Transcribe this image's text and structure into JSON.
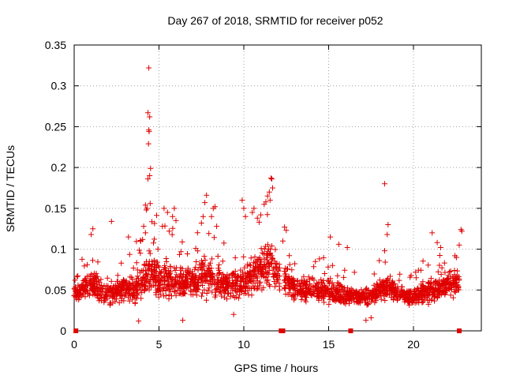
{
  "chart_data": {
    "type": "scatter",
    "title": "Day 267 of 2018, SRMTID for receiver p052",
    "xlabel": "GPS time / hours",
    "ylabel": "SRMTID / TECUs",
    "xlim": [
      0,
      24
    ],
    "ylim": [
      0,
      0.35
    ],
    "xticks": [
      0,
      5,
      10,
      15,
      20
    ],
    "xtick_labels": [
      "0",
      "5",
      "10",
      "15",
      "20"
    ],
    "yticks": [
      0,
      0.05,
      0.1,
      0.15,
      0.2,
      0.25,
      0.3,
      0.35
    ],
    "ytick_labels": [
      "0",
      "0.05",
      "0.1",
      "0.15",
      "0.2",
      "0.25",
      "0.3",
      "0.35"
    ],
    "grid": true,
    "marker": "+",
    "color": "#e00000",
    "generated_points_per_hour": 95,
    "gap_markers_x": [
      0.1,
      12.2,
      12.3,
      16.3,
      22.7
    ],
    "envelope": [
      {
        "x": 0.0,
        "base": 0.046,
        "spread": 0.012
      },
      {
        "x": 0.5,
        "base": 0.05,
        "spread": 0.016
      },
      {
        "x": 1.0,
        "base": 0.058,
        "spread": 0.025
      },
      {
        "x": 1.5,
        "base": 0.048,
        "spread": 0.018
      },
      {
        "x": 2.0,
        "base": 0.045,
        "spread": 0.018
      },
      {
        "x": 2.5,
        "base": 0.048,
        "spread": 0.02
      },
      {
        "x": 3.0,
        "base": 0.052,
        "spread": 0.022
      },
      {
        "x": 3.5,
        "base": 0.05,
        "spread": 0.022
      },
      {
        "x": 4.0,
        "base": 0.06,
        "spread": 0.03
      },
      {
        "x": 4.5,
        "base": 0.075,
        "spread": 0.04
      },
      {
        "x": 5.0,
        "base": 0.062,
        "spread": 0.03
      },
      {
        "x": 5.5,
        "base": 0.062,
        "spread": 0.03
      },
      {
        "x": 6.0,
        "base": 0.058,
        "spread": 0.026
      },
      {
        "x": 7.0,
        "base": 0.06,
        "spread": 0.028
      },
      {
        "x": 7.5,
        "base": 0.068,
        "spread": 0.032
      },
      {
        "x": 8.0,
        "base": 0.065,
        "spread": 0.03
      },
      {
        "x": 9.0,
        "base": 0.056,
        "spread": 0.024
      },
      {
        "x": 10.0,
        "base": 0.06,
        "spread": 0.026
      },
      {
        "x": 10.5,
        "base": 0.07,
        "spread": 0.03
      },
      {
        "x": 11.0,
        "base": 0.072,
        "spread": 0.032
      },
      {
        "x": 11.5,
        "base": 0.082,
        "spread": 0.036
      },
      {
        "x": 12.0,
        "base": 0.07,
        "spread": 0.03
      },
      {
        "x": 12.5,
        "base": 0.06,
        "spread": 0.025
      },
      {
        "x": 13.0,
        "base": 0.052,
        "spread": 0.02
      },
      {
        "x": 14.0,
        "base": 0.05,
        "spread": 0.018
      },
      {
        "x": 15.0,
        "base": 0.048,
        "spread": 0.018
      },
      {
        "x": 16.0,
        "base": 0.044,
        "spread": 0.016
      },
      {
        "x": 17.0,
        "base": 0.04,
        "spread": 0.014
      },
      {
        "x": 17.5,
        "base": 0.042,
        "spread": 0.015
      },
      {
        "x": 18.0,
        "base": 0.05,
        "spread": 0.02
      },
      {
        "x": 18.5,
        "base": 0.055,
        "spread": 0.022
      },
      {
        "x": 19.0,
        "base": 0.045,
        "spread": 0.016
      },
      {
        "x": 20.0,
        "base": 0.042,
        "spread": 0.016
      },
      {
        "x": 21.0,
        "base": 0.05,
        "spread": 0.02
      },
      {
        "x": 22.0,
        "base": 0.055,
        "spread": 0.02
      },
      {
        "x": 22.7,
        "base": 0.058,
        "spread": 0.022
      }
    ],
    "outliers": [
      {
        "x": 4.4,
        "y": 0.322
      },
      {
        "x": 4.35,
        "y": 0.267
      },
      {
        "x": 4.45,
        "y": 0.262
      },
      {
        "x": 4.4,
        "y": 0.246
      },
      {
        "x": 4.42,
        "y": 0.244
      },
      {
        "x": 4.38,
        "y": 0.229
      },
      {
        "x": 4.5,
        "y": 0.199
      },
      {
        "x": 4.45,
        "y": 0.19
      },
      {
        "x": 4.35,
        "y": 0.186
      },
      {
        "x": 4.2,
        "y": 0.154
      },
      {
        "x": 4.3,
        "y": 0.15
      },
      {
        "x": 4.25,
        "y": 0.148
      },
      {
        "x": 4.48,
        "y": 0.156
      },
      {
        "x": 4.1,
        "y": 0.128
      },
      {
        "x": 4.2,
        "y": 0.12
      },
      {
        "x": 5.3,
        "y": 0.15
      },
      {
        "x": 5.5,
        "y": 0.145
      },
      {
        "x": 5.8,
        "y": 0.14
      },
      {
        "x": 5.9,
        "y": 0.15
      },
      {
        "x": 6.0,
        "y": 0.135
      },
      {
        "x": 5.2,
        "y": 0.128
      },
      {
        "x": 5.6,
        "y": 0.122
      },
      {
        "x": 7.8,
        "y": 0.166
      },
      {
        "x": 7.7,
        "y": 0.157
      },
      {
        "x": 8.2,
        "y": 0.15
      },
      {
        "x": 8.3,
        "y": 0.152
      },
      {
        "x": 7.6,
        "y": 0.14
      },
      {
        "x": 8.1,
        "y": 0.14
      },
      {
        "x": 7.5,
        "y": 0.132
      },
      {
        "x": 8.4,
        "y": 0.128
      },
      {
        "x": 9.9,
        "y": 0.16
      },
      {
        "x": 10.0,
        "y": 0.15
      },
      {
        "x": 10.1,
        "y": 0.14
      },
      {
        "x": 10.6,
        "y": 0.15
      },
      {
        "x": 10.5,
        "y": 0.145
      },
      {
        "x": 10.8,
        "y": 0.138
      },
      {
        "x": 11.2,
        "y": 0.155
      },
      {
        "x": 11.4,
        "y": 0.165
      },
      {
        "x": 11.5,
        "y": 0.17
      },
      {
        "x": 11.6,
        "y": 0.187
      },
      {
        "x": 11.65,
        "y": 0.186
      },
      {
        "x": 11.7,
        "y": 0.175
      },
      {
        "x": 11.3,
        "y": 0.158
      },
      {
        "x": 11.55,
        "y": 0.16
      },
      {
        "x": 11.0,
        "y": 0.142
      },
      {
        "x": 10.9,
        "y": 0.133
      },
      {
        "x": 12.4,
        "y": 0.127
      },
      {
        "x": 12.5,
        "y": 0.123
      },
      {
        "x": 12.3,
        "y": 0.11
      },
      {
        "x": 2.2,
        "y": 0.134
      },
      {
        "x": 1.1,
        "y": 0.125
      },
      {
        "x": 1.0,
        "y": 0.118
      },
      {
        "x": 3.2,
        "y": 0.115
      },
      {
        "x": 15.1,
        "y": 0.115
      },
      {
        "x": 15.6,
        "y": 0.106
      },
      {
        "x": 16.1,
        "y": 0.102
      },
      {
        "x": 18.3,
        "y": 0.18
      },
      {
        "x": 18.5,
        "y": 0.13
      },
      {
        "x": 18.45,
        "y": 0.118
      },
      {
        "x": 18.3,
        "y": 0.098
      },
      {
        "x": 21.1,
        "y": 0.12
      },
      {
        "x": 21.4,
        "y": 0.108
      },
      {
        "x": 21.6,
        "y": 0.102
      },
      {
        "x": 22.8,
        "y": 0.124
      },
      {
        "x": 22.85,
        "y": 0.122
      },
      {
        "x": 22.7,
        "y": 0.105
      },
      {
        "x": 0.05,
        "y": 0.062
      },
      {
        "x": 3.8,
        "y": 0.012
      },
      {
        "x": 6.4,
        "y": 0.013
      },
      {
        "x": 17.2,
        "y": 0.013
      },
      {
        "x": 17.5,
        "y": 0.016
      },
      {
        "x": 9.4,
        "y": 0.02
      }
    ]
  }
}
